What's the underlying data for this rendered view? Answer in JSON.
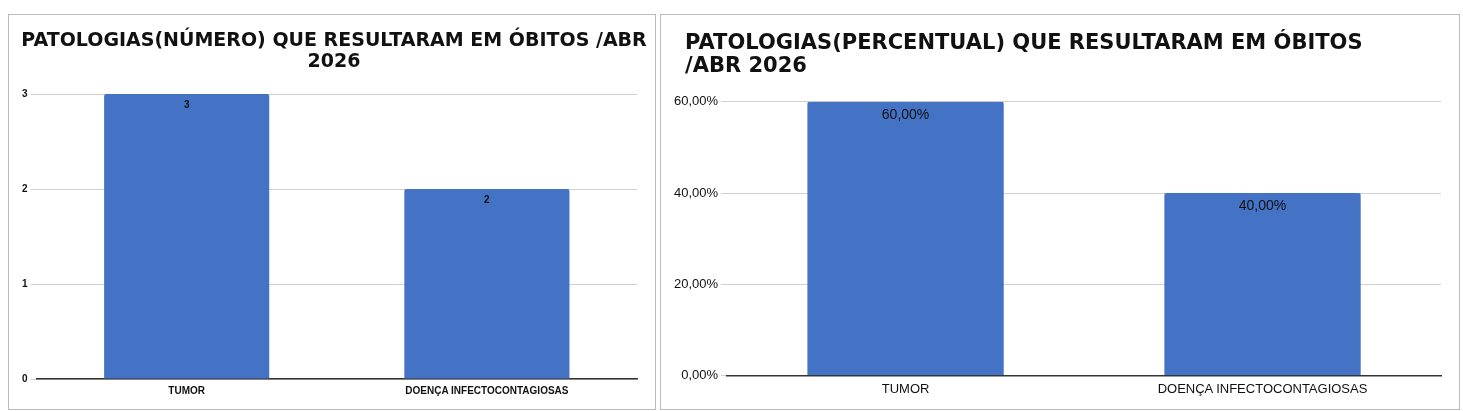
{
  "chart_data": [
    {
      "type": "bar",
      "title": "PATOLOGIAS(NÚMERO) QUE RESULTARAM EM ÓBITOS /ABR 2026",
      "categories": [
        "TUMOR",
        "DOENÇA INFECTOCONTAGIOSAS"
      ],
      "values": [
        3,
        2
      ],
      "color": "#4472c4",
      "ylim": [
        0,
        3
      ],
      "yticks": [
        0,
        1,
        2,
        3
      ],
      "grid": "y",
      "data_labels": true
    },
    {
      "type": "bar",
      "title": "PATOLOGIAS(PERCENTUAL) QUE RESULTARAM EM ÓBITOS /ABR 2026",
      "categories": [
        "TUMOR",
        "DOENÇA INFECTOCONTAGIOSAS"
      ],
      "values": [
        60,
        40
      ],
      "value_labels": [
        "60,00%",
        "40,00%"
      ],
      "color": "#4472c4",
      "ylim": [
        0,
        60
      ],
      "yticks": [
        {
          "value": 0,
          "label": "0,00%"
        },
        {
          "value": 20,
          "label": "20,00%"
        },
        {
          "value": 40,
          "label": "40,00%"
        },
        {
          "value": 60,
          "label": "60,00%"
        }
      ],
      "grid": "y"
    }
  ]
}
